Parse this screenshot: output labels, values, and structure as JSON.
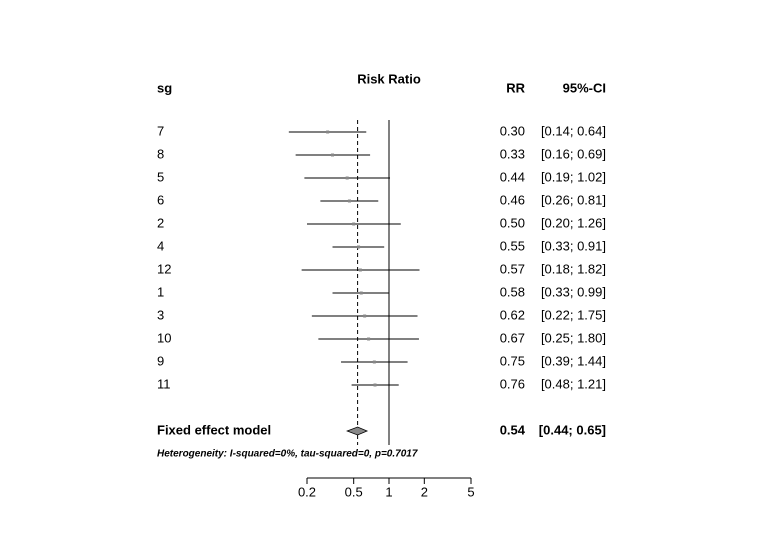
{
  "chart_data": {
    "type": "forest",
    "title": "Risk Ratio",
    "label_header": "sg",
    "value_header": "RR",
    "ci_header": "95%-CI",
    "categories": [
      "7",
      "8",
      "5",
      "6",
      "2",
      "4",
      "12",
      "1",
      "3",
      "10",
      "9",
      "11"
    ],
    "values": [
      0.3,
      0.33,
      0.44,
      0.46,
      0.5,
      0.55,
      0.57,
      0.58,
      0.62,
      0.67,
      0.75,
      0.76
    ],
    "value_labels": [
      "0.30",
      "0.33",
      "0.44",
      "0.46",
      "0.50",
      "0.55",
      "0.57",
      "0.58",
      "0.62",
      "0.67",
      "0.75",
      "0.76"
    ],
    "lower": [
      0.14,
      0.16,
      0.19,
      0.26,
      0.2,
      0.33,
      0.18,
      0.33,
      0.22,
      0.25,
      0.39,
      0.48
    ],
    "upper": [
      0.64,
      0.69,
      1.02,
      0.81,
      1.26,
      0.91,
      1.82,
      0.99,
      1.75,
      1.8,
      1.44,
      1.21
    ],
    "ci_labels": [
      "[0.14; 0.64]",
      "[0.16; 0.69]",
      "[0.19; 1.02]",
      "[0.26; 0.81]",
      "[0.20; 1.26]",
      "[0.33; 0.91]",
      "[0.18; 1.82]",
      "[0.33; 0.99]",
      "[0.22; 1.75]",
      "[0.25; 1.80]",
      "[0.39; 1.44]",
      "[0.48; 1.21]"
    ],
    "pooled": {
      "name": "Fixed effect model",
      "value": 0.54,
      "value_label": "0.54",
      "lower": 0.44,
      "upper": 0.65,
      "ci_label": "[0.44; 0.65]"
    },
    "annotation": "Heterogeneity: I-squared=0%, tau-squared=0, p=0.7017",
    "xscale": "log",
    "null_value": 1,
    "xlim": [
      0.2,
      5
    ],
    "xticks": [
      0.2,
      0.5,
      1,
      2,
      5
    ],
    "color": "#000000"
  }
}
